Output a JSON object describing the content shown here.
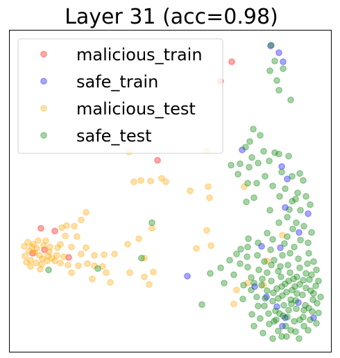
{
  "chart_data": {
    "type": "scatter",
    "title": "Layer 31 (acc=0.98)",
    "xlabel": "",
    "ylabel": "",
    "axis_ticks": "hidden",
    "grid": false,
    "legend_placement": "upper-left",
    "marker_opacity": 0.35,
    "series": [
      {
        "name": "malicious_train",
        "color": "#ff0000",
        "points": [
          [
            334,
            89
          ],
          [
            318,
            117
          ],
          [
            227,
            231
          ],
          [
            59,
            329
          ],
          [
            79,
            333
          ],
          [
            99,
            371
          ],
          [
            47,
            365
          ],
          [
            64,
            360
          ]
        ]
      },
      {
        "name": "safe_train",
        "color": "#0000ff",
        "points": [
          [
            390,
            66
          ],
          [
            402,
            76
          ],
          [
            408,
            89
          ],
          [
            349,
            216
          ],
          [
            406,
            240
          ],
          [
            414,
            258
          ],
          [
            411,
            299
          ],
          [
            444,
            308
          ],
          [
            431,
            335
          ],
          [
            377,
            355
          ],
          [
            404,
            357
          ],
          [
            270,
            398
          ],
          [
            367,
            413
          ],
          [
            399,
            442
          ],
          [
            411,
            458
          ],
          [
            407,
            470
          ],
          [
            430,
            436
          ],
          [
            452,
            458
          ],
          [
            384,
            428
          ]
        ]
      },
      {
        "name": "malicious_test",
        "color": "#ffa500",
        "points": [
          [
            186,
            219
          ],
          [
            298,
            217
          ],
          [
            233,
            257
          ],
          [
            193,
            262
          ],
          [
            217,
            261
          ],
          [
            239,
            262
          ],
          [
            203,
            260
          ],
          [
            352,
            269
          ],
          [
            300,
            269
          ],
          [
            274,
            275
          ],
          [
            302,
            285
          ],
          [
            124,
            306
          ],
          [
            117,
            317
          ],
          [
            107,
            326
          ],
          [
            96,
            325
          ],
          [
            89,
            328
          ],
          [
            111,
            341
          ],
          [
            94,
            340
          ],
          [
            87,
            352
          ],
          [
            83,
            357
          ],
          [
            103,
            356
          ],
          [
            124,
            357
          ],
          [
            117,
            366
          ],
          [
            136,
            368
          ],
          [
            184,
            352
          ],
          [
            165,
            366
          ],
          [
            150,
            367
          ],
          [
            148,
            384
          ],
          [
            136,
            383
          ],
          [
            126,
            380
          ],
          [
            113,
            383
          ],
          [
            98,
            382
          ],
          [
            103,
            393
          ],
          [
            133,
            402
          ],
          [
            153,
            393
          ],
          [
            159,
            407
          ],
          [
            187,
            393
          ],
          [
            208,
            399
          ],
          [
            215,
            410
          ],
          [
            208,
            372
          ],
          [
            221,
            392
          ],
          [
            200,
            344
          ],
          [
            219,
            329
          ],
          [
            298,
            332
          ],
          [
            283,
            358
          ],
          [
            304,
            354
          ],
          [
            407,
            339
          ],
          [
            385,
            376
          ],
          [
            357,
            408
          ],
          [
            380,
            411
          ],
          [
            341,
            418
          ],
          [
            337,
            438
          ],
          [
            40,
            349
          ],
          [
            35,
            355
          ],
          [
            42,
            362
          ],
          [
            36,
            369
          ],
          [
            44,
            375
          ],
          [
            52,
            379
          ],
          [
            60,
            381
          ],
          [
            68,
            376
          ],
          [
            75,
            372
          ],
          [
            82,
            368
          ],
          [
            71,
            363
          ],
          [
            63,
            354
          ],
          [
            55,
            347
          ],
          [
            48,
            352
          ],
          [
            57,
            368
          ],
          [
            50,
            364
          ],
          [
            46,
            356
          ],
          [
            66,
            347
          ],
          [
            72,
            356
          ],
          [
            79,
            376
          ],
          [
            58,
            388
          ],
          [
            44,
            384
          ],
          [
            38,
            378
          ],
          [
            87,
            379
          ],
          [
            92,
            370
          ],
          [
            53,
            358
          ],
          [
            61,
            373
          ],
          [
            69,
            369
          ]
        ]
      },
      {
        "name": "safe_test",
        "color": "#008000",
        "points": [
          [
            391,
            65
          ],
          [
            396,
            88
          ],
          [
            408,
            99
          ],
          [
            399,
            116
          ],
          [
            402,
            130
          ],
          [
            419,
            144
          ],
          [
            389,
            102
          ],
          [
            365,
            186
          ],
          [
            375,
            195
          ],
          [
            360,
            204
          ],
          [
            354,
            212
          ],
          [
            380,
            218
          ],
          [
            363,
            227
          ],
          [
            346,
            236
          ],
          [
            333,
            238
          ],
          [
            359,
            241
          ],
          [
            372,
            235
          ],
          [
            388,
            232
          ],
          [
            396,
            220
          ],
          [
            402,
            222
          ],
          [
            416,
            225
          ],
          [
            406,
            248
          ],
          [
            382,
            254
          ],
          [
            370,
            264
          ],
          [
            393,
            268
          ],
          [
            411,
            272
          ],
          [
            421,
            254
          ],
          [
            432,
            250
          ],
          [
            437,
            260
          ],
          [
            429,
            278
          ],
          [
            421,
            290
          ],
          [
            433,
            303
          ],
          [
            414,
            313
          ],
          [
            389,
            303
          ],
          [
            366,
            285
          ],
          [
            355,
            291
          ],
          [
            357,
            264
          ],
          [
            343,
            251
          ],
          [
            427,
            321
          ],
          [
            438,
            326
          ],
          [
            449,
            335
          ],
          [
            422,
            330
          ],
          [
            414,
            341
          ],
          [
            410,
            351
          ],
          [
            393,
            345
          ],
          [
            385,
            336
          ],
          [
            358,
            344
          ],
          [
            347,
            359
          ],
          [
            356,
            370
          ],
          [
            371,
            368
          ],
          [
            381,
            377
          ],
          [
            373,
            389
          ],
          [
            357,
            385
          ],
          [
            346,
            380
          ],
          [
            337,
            396
          ],
          [
            323,
            408
          ],
          [
            303,
            394
          ],
          [
            291,
            439
          ],
          [
            219,
            321
          ],
          [
            70,
            389
          ],
          [
            141,
            387
          ],
          [
            204,
            372
          ],
          [
            385,
            393
          ],
          [
            401,
            391
          ],
          [
            415,
            382
          ],
          [
            430,
            373
          ],
          [
            445,
            365
          ],
          [
            452,
            377
          ],
          [
            456,
            389
          ],
          [
            441,
            394
          ],
          [
            428,
            399
          ],
          [
            416,
            405
          ],
          [
            406,
            413
          ],
          [
            394,
            422
          ],
          [
            382,
            430
          ],
          [
            372,
            441
          ],
          [
            363,
            453
          ],
          [
            375,
            459
          ],
          [
            387,
            452
          ],
          [
            398,
            461
          ],
          [
            412,
            470
          ],
          [
            424,
            463
          ],
          [
            437,
            457
          ],
          [
            450,
            449
          ],
          [
            457,
            437
          ],
          [
            452,
            423
          ],
          [
            441,
            415
          ],
          [
            428,
            423
          ],
          [
            419,
            432
          ],
          [
            409,
            440
          ],
          [
            397,
            448
          ],
          [
            388,
            467
          ],
          [
            401,
            477
          ],
          [
            413,
            485
          ],
          [
            426,
            478
          ],
          [
            438,
            470
          ],
          [
            447,
            461
          ],
          [
            455,
            412
          ],
          [
            446,
            403
          ],
          [
            432,
            410
          ],
          [
            421,
            418
          ],
          [
            407,
            426
          ],
          [
            393,
            434
          ],
          [
            381,
            441
          ],
          [
            370,
            428
          ],
          [
            362,
            418
          ],
          [
            377,
            411
          ],
          [
            391,
            405
          ],
          [
            405,
            399
          ],
          [
            418,
            393
          ],
          [
            432,
            386
          ],
          [
            443,
            380
          ],
          [
            424,
            356
          ],
          [
            433,
            346
          ],
          [
            444,
            350
          ],
          [
            407,
            368
          ],
          [
            395,
            375
          ],
          [
            418,
            365
          ],
          [
            427,
            445
          ],
          [
            440,
            440
          ],
          [
            451,
            432
          ],
          [
            403,
            452
          ],
          [
            416,
            447
          ],
          [
            385,
            419
          ],
          [
            399,
            416
          ],
          [
            411,
            409
          ],
          [
            423,
            402
          ],
          [
            436,
            425
          ],
          [
            448,
            419
          ],
          [
            362,
            400
          ],
          [
            350,
            431
          ],
          [
            366,
            470
          ],
          [
            379,
            480
          ],
          [
            393,
            488
          ],
          [
            406,
            485
          ],
          [
            419,
            476
          ],
          [
            431,
            488
          ],
          [
            444,
            476
          ],
          [
            456,
            466
          ],
          [
            459,
            451
          ],
          [
            462,
            428
          ],
          [
            459,
            405
          ],
          [
            414,
            457
          ],
          [
            426,
            433
          ],
          [
            438,
            447
          ],
          [
            395,
            463
          ],
          [
            408,
            455
          ],
          [
            420,
            438
          ],
          [
            432,
            461
          ],
          [
            445,
            444
          ],
          [
            401,
            430
          ],
          [
            413,
            421
          ],
          [
            425,
            413
          ],
          [
            437,
            404
          ],
          [
            449,
            396
          ],
          [
            391,
            382
          ],
          [
            404,
            384
          ],
          [
            378,
            402
          ],
          [
            366,
            408
          ],
          [
            351,
            411
          ],
          [
            341,
            366
          ],
          [
            331,
            375
          ],
          [
            318,
            386
          ],
          [
            357,
            356
          ],
          [
            372,
            350
          ],
          [
            390,
            360
          ],
          [
            402,
            321
          ],
          [
            417,
            302
          ],
          [
            426,
            287
          ],
          [
            403,
            283
          ],
          [
            441,
            283
          ],
          [
            447,
            295
          ]
        ]
      }
    ]
  }
}
